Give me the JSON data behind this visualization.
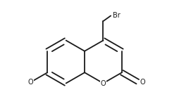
{
  "background_color": "#ffffff",
  "line_color": "#1a1a1a",
  "line_width": 1.3,
  "text_color": "#1a1a1a",
  "label_fontsize": 7.0,
  "br_label": "Br",
  "o_ring_label": "O",
  "o_ketone_label": "O",
  "methoxy_label": "O",
  "fig_width": 2.54,
  "fig_height": 1.58,
  "dpi": 100
}
